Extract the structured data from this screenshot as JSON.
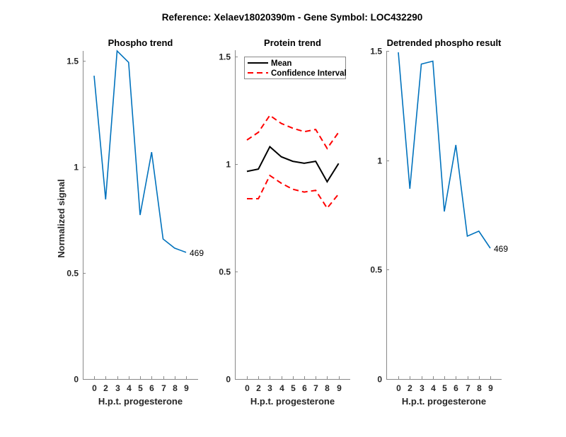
{
  "figure_title": "Reference:  Xelaev18020390m - Gene Symbol:  LOC432290",
  "colors": {
    "phospho_line": "#0072BD",
    "mean_line": "#000000",
    "ci_line": "#FF0000",
    "axis": "#888888"
  },
  "chart_data": [
    {
      "type": "line",
      "title": "Phospho trend",
      "xlabel": "H.p.t. progesterone",
      "ylabel": "Normalized signal",
      "categories": [
        "0",
        "2",
        "3",
        "4",
        "5",
        "6",
        "7",
        "8",
        "9"
      ],
      "ylim": [
        0,
        1.547
      ],
      "yticks": [
        0,
        0.5,
        1,
        1.5
      ],
      "ytick_labels": [
        "0",
        "0.5",
        "1",
        "1.5"
      ],
      "grid": false,
      "series": [
        {
          "name": "Phospho",
          "color": "#0072BD",
          "values": [
            1.43,
            0.847,
            1.547,
            1.493,
            0.773,
            1.07,
            0.66,
            0.617,
            0.597
          ]
        }
      ],
      "annotations": [
        {
          "text": "469",
          "at_index": 8
        }
      ]
    },
    {
      "type": "line",
      "title": "Protein trend",
      "xlabel": "H.p.t. progesterone",
      "ylabel": "",
      "categories": [
        "0",
        "2",
        "3",
        "4",
        "5",
        "6",
        "7",
        "8",
        "9"
      ],
      "ylim": [
        0,
        1.53
      ],
      "yticks": [
        0,
        0.5,
        1,
        1.5
      ],
      "ytick_labels": [
        "0",
        "0.5",
        "1",
        "1.5"
      ],
      "grid": false,
      "legend": {
        "placement": "top-left",
        "entries": [
          "Mean",
          "Confidence Interval"
        ]
      },
      "series": [
        {
          "name": "Mean",
          "color": "#000000",
          "style": "solid",
          "values": [
            0.966,
            0.977,
            1.081,
            1.034,
            1.013,
            1.004,
            1.013,
            0.918,
            1.003
          ]
        },
        {
          "name": "Confidence Interval (upper)",
          "color": "#FF0000",
          "style": "dashed",
          "values": [
            1.112,
            1.148,
            1.227,
            1.189,
            1.167,
            1.151,
            1.161,
            1.073,
            1.148
          ]
        },
        {
          "name": "Confidence Interval (lower)",
          "color": "#FF0000",
          "style": "dashed",
          "values": [
            0.839,
            0.839,
            0.947,
            0.911,
            0.883,
            0.87,
            0.878,
            0.795,
            0.861
          ]
        }
      ]
    },
    {
      "type": "line",
      "title": "Detrended phospho result",
      "xlabel": "H.p.t. progesterone",
      "ylabel": "",
      "categories": [
        "0",
        "2",
        "3",
        "4",
        "5",
        "6",
        "7",
        "8",
        "9"
      ],
      "ylim": [
        0,
        1.5
      ],
      "yticks": [
        0,
        0.5,
        1,
        1.5
      ],
      "ytick_labels": [
        "0",
        "0.5",
        "1",
        "1.5"
      ],
      "grid": false,
      "series": [
        {
          "name": "Detrended phospho",
          "color": "#0072BD",
          "values": [
            1.494,
            0.87,
            1.44,
            1.453,
            0.766,
            1.07,
            0.653,
            0.676,
            0.598
          ]
        }
      ],
      "annotations": [
        {
          "text": "469",
          "at_index": 8
        }
      ]
    }
  ]
}
